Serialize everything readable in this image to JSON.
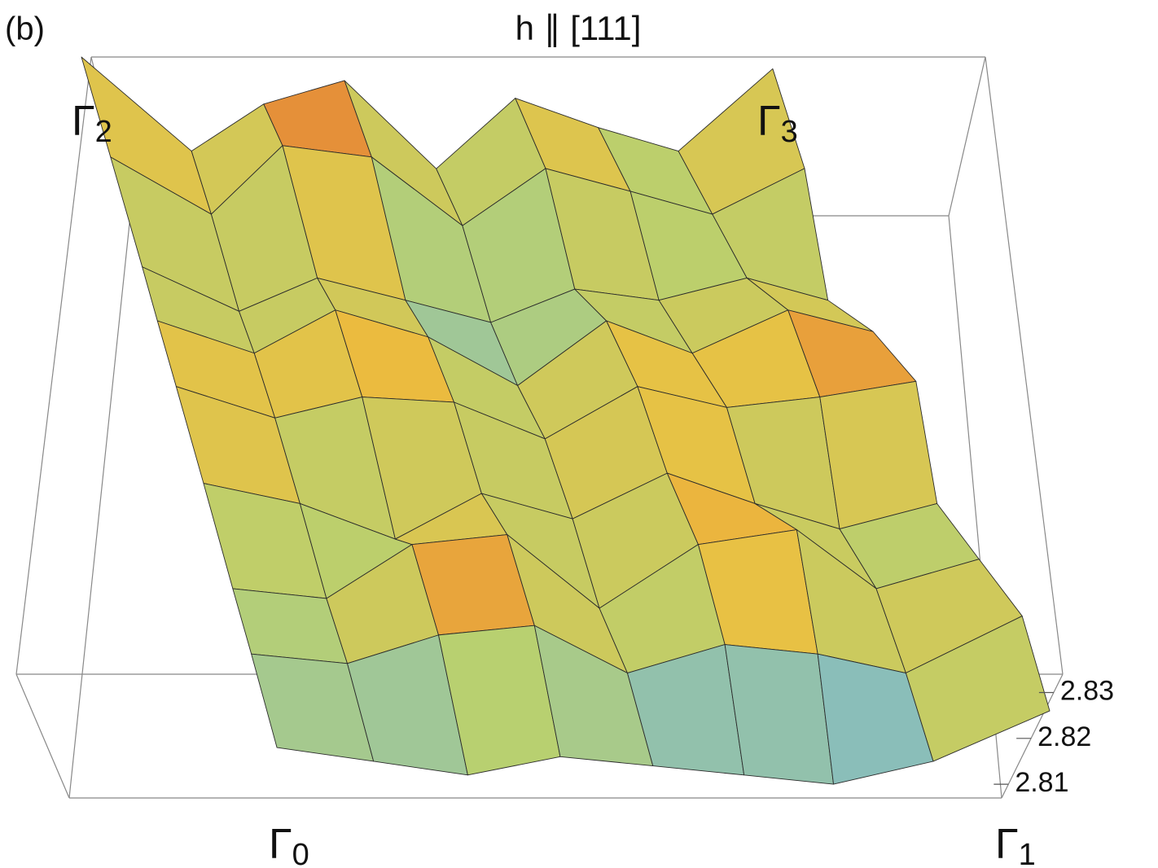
{
  "panel_label": "(b)",
  "chart_data": {
    "type": "surface3d",
    "title": "h ∥ [111]",
    "corner_labels": [
      {
        "text": "Γ",
        "subscript": "0"
      },
      {
        "text": "Γ",
        "subscript": "1"
      },
      {
        "text": "Γ",
        "subscript": "2"
      },
      {
        "text": "Γ",
        "subscript": "3"
      }
    ],
    "zlim": [
      2.807,
      2.834
    ],
    "zticks": [
      2.81,
      2.82,
      2.83
    ],
    "colormap": [
      "#3030d8",
      "#6fb4e4",
      "#b8d070",
      "#ecc040",
      "#d8302a"
    ],
    "z": [
      [
        2.818,
        2.815,
        2.812,
        2.816,
        2.814,
        2.812,
        2.81,
        2.815,
        2.826
      ],
      [
        2.822,
        2.82,
        2.826,
        2.828,
        2.818,
        2.824,
        2.822,
        2.818,
        2.83
      ],
      [
        2.82,
        2.818,
        2.829,
        2.831,
        2.816,
        2.829,
        2.832,
        2.82,
        2.826
      ],
      [
        2.826,
        2.822,
        2.815,
        2.824,
        2.819,
        2.828,
        2.822,
        2.817,
        2.822
      ],
      [
        2.83,
        2.824,
        2.828,
        2.827,
        2.82,
        2.83,
        2.826,
        2.828,
        2.831
      ],
      [
        2.828,
        2.822,
        2.83,
        2.825,
        2.816,
        2.828,
        2.822,
        2.83,
        2.826
      ],
      [
        2.824,
        2.816,
        2.822,
        2.818,
        2.814,
        2.82,
        2.818,
        2.822,
        2.818
      ],
      [
        2.83,
        2.82,
        2.832,
        2.83,
        2.818,
        2.828,
        2.824,
        2.82,
        2.828
      ],
      [
        2.834,
        2.818,
        2.826,
        2.83,
        2.815,
        2.827,
        2.822,
        2.818,
        2.832
      ]
    ]
  }
}
